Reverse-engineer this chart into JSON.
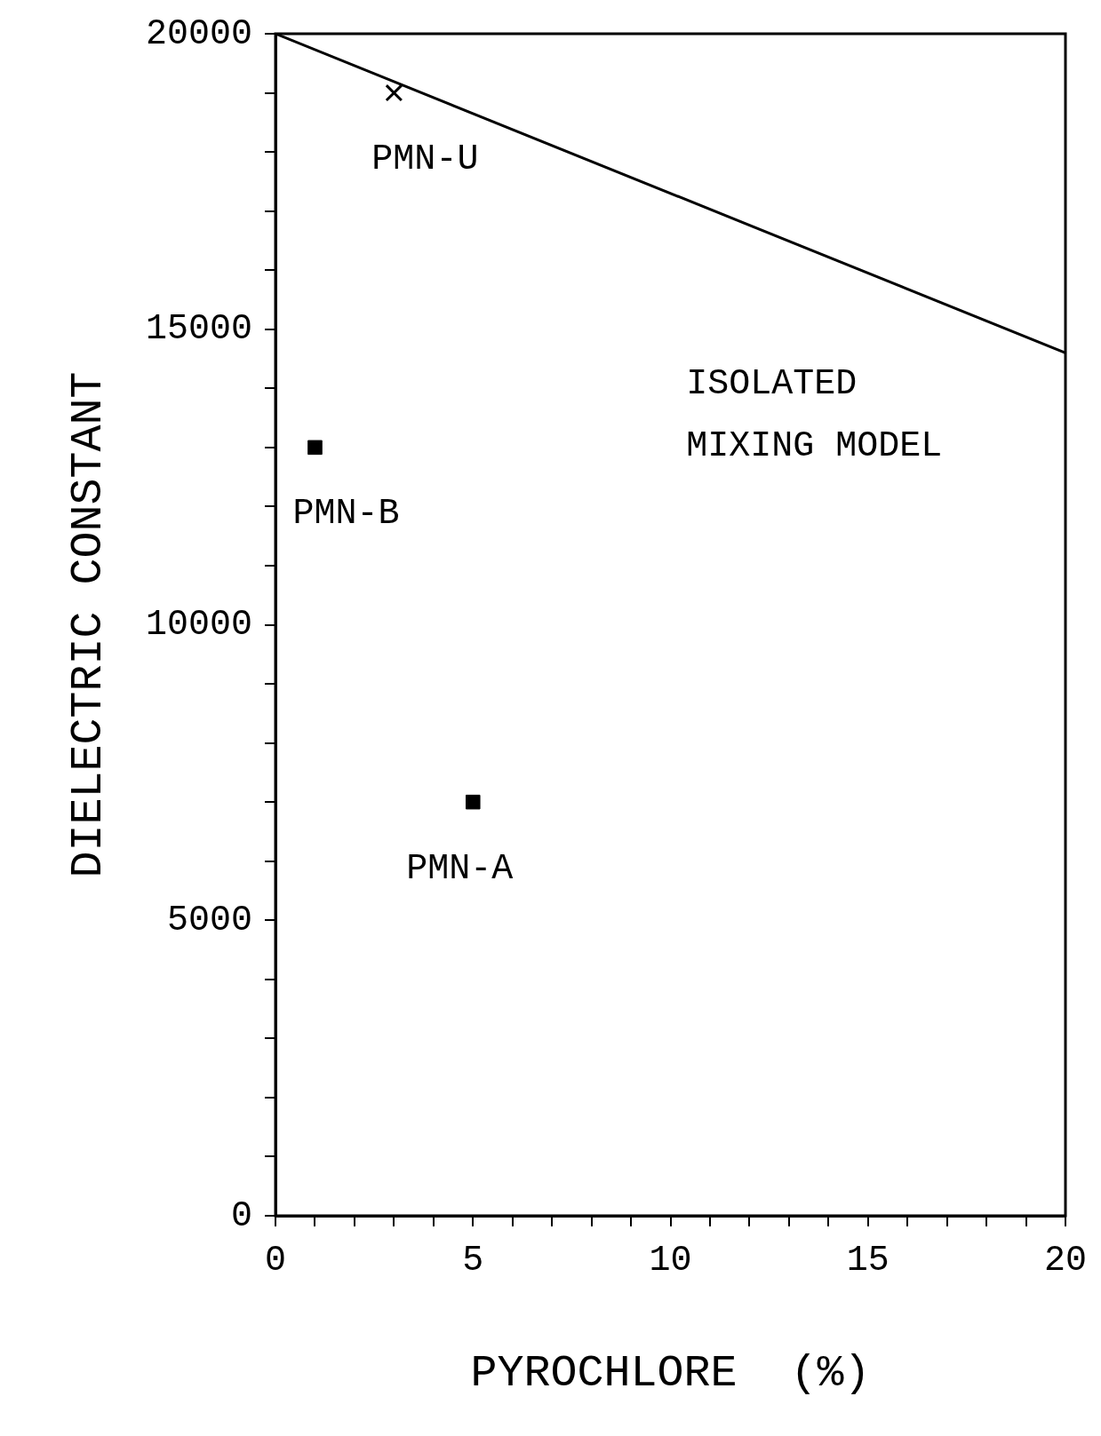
{
  "chart_data": {
    "type": "scatter",
    "xlabel": "PYROCHLORE  (%)",
    "ylabel": "DIELECTRIC CONSTANT",
    "xlim": [
      0,
      20
    ],
    "ylim": [
      0,
      20000
    ],
    "xticks": [
      0,
      {
        "value": 1,
        "label": null
      },
      {
        "value": 2,
        "label": null
      },
      {
        "value": 3,
        "label": null
      },
      {
        "value": 4,
        "label": null
      },
      5,
      {
        "value": 6,
        "label": null
      },
      {
        "value": 7,
        "label": null
      },
      {
        "value": 8,
        "label": null
      },
      {
        "value": 9,
        "label": null
      },
      10,
      {
        "value": 11,
        "label": null
      },
      {
        "value": 12,
        "label": null
      },
      {
        "value": 13,
        "label": null
      },
      {
        "value": 14,
        "label": null
      },
      15,
      {
        "value": 16,
        "label": null
      },
      {
        "value": 17,
        "label": null
      },
      {
        "value": 18,
        "label": null
      },
      {
        "value": 19,
        "label": null
      },
      20
    ],
    "yticks": [
      0,
      {
        "value": 1000,
        "label": null
      },
      {
        "value": 2000,
        "label": null
      },
      {
        "value": 3000,
        "label": null
      },
      {
        "value": 4000,
        "label": null
      },
      5000,
      {
        "value": 6000,
        "label": null
      },
      {
        "value": 7000,
        "label": null
      },
      {
        "value": 8000,
        "label": null
      },
      {
        "value": 9000,
        "label": null
      },
      10000,
      {
        "value": 11000,
        "label": null
      },
      {
        "value": 12000,
        "label": null
      },
      {
        "value": 13000,
        "label": null
      },
      {
        "value": 14000,
        "label": null
      },
      15000,
      {
        "value": 16000,
        "label": null
      },
      {
        "value": 17000,
        "label": null
      },
      {
        "value": 18000,
        "label": null
      },
      {
        "value": 19000,
        "label": null
      },
      20000
    ],
    "grid": false,
    "annotations": [
      {
        "text": "PMN-U",
        "x": 3,
        "y": 19000
      },
      {
        "text": "PMN-B",
        "x": 1,
        "y": 13000
      },
      {
        "text": "PMN-A",
        "x": 5,
        "y": 7000
      }
    ],
    "series": [
      {
        "name": "ISOLATED MIXING MODEL",
        "type": "line",
        "color": "#000000",
        "x": [
          0,
          20
        ],
        "values": [
          20000,
          14600
        ],
        "marker": "none",
        "line_style": "solid"
      },
      {
        "color": "#000000",
        "x": [
          3
        ],
        "values": [
          19000
        ],
        "marker": "cross"
      },
      {
        "color": "#000000",
        "x": [
          1
        ],
        "values": [
          13000
        ],
        "marker": "square"
      },
      {
        "color": "#000000",
        "x": [
          5
        ],
        "values": [
          7000
        ],
        "marker": "square"
      }
    ]
  }
}
